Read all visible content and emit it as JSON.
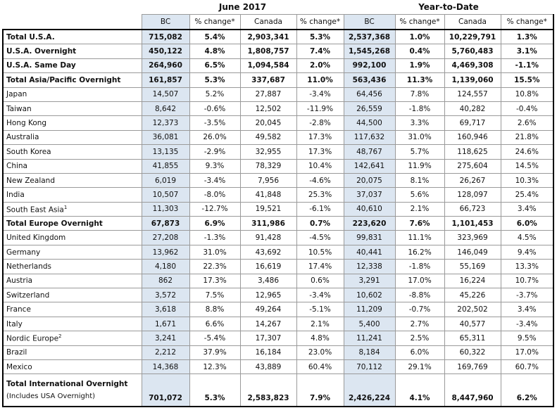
{
  "groups": [
    "June 2017",
    "Year-to-Date"
  ],
  "columns": [
    "BC",
    "% change*",
    "Canada",
    "% change*",
    "BC",
    "% change*",
    "Canada",
    "% change*"
  ],
  "rows": [
    {
      "label": "Total U.S.A.",
      "bold": true,
      "values": [
        "715,082",
        "5.4%",
        "2,903,341",
        "5.3%",
        "2,537,368",
        "1.0%",
        "10,229,791",
        "1.3%"
      ]
    },
    {
      "label": "U.S.A. Overnight",
      "bold": true,
      "values": [
        "450,122",
        "4.8%",
        "1,808,757",
        "7.4%",
        "1,545,268",
        "0.4%",
        "5,760,483",
        "3.1%"
      ]
    },
    {
      "label": "U.S.A. Same Day",
      "bold": true,
      "values": [
        "264,960",
        "6.5%",
        "1,094,584",
        "2.0%",
        "992,100",
        "1.9%",
        "4,469,308",
        "-1.1%"
      ]
    },
    {
      "label": "Total Asia/Pacific Overnight",
      "bold": true,
      "values": [
        "161,857",
        "5.3%",
        "337,687",
        "11.0%",
        "563,436",
        "11.3%",
        "1,139,060",
        "15.5%"
      ]
    },
    {
      "label": "Japan",
      "values": [
        "14,507",
        "5.2%",
        "27,887",
        "-3.4%",
        "64,456",
        "7.8%",
        "124,557",
        "10.8%"
      ]
    },
    {
      "label": "Taiwan",
      "values": [
        "8,642",
        "-0.6%",
        "12,502",
        "-11.9%",
        "26,559",
        "-1.8%",
        "40,282",
        "-0.4%"
      ]
    },
    {
      "label": "Hong Kong",
      "values": [
        "12,373",
        "-3.5%",
        "20,045",
        "-2.8%",
        "44,500",
        "3.3%",
        "69,717",
        "2.6%"
      ]
    },
    {
      "label": "Australia",
      "values": [
        "36,081",
        "26.0%",
        "49,582",
        "17.3%",
        "117,632",
        "31.0%",
        "160,946",
        "21.8%"
      ]
    },
    {
      "label": "South Korea",
      "values": [
        "13,135",
        "-2.9%",
        "32,955",
        "17.3%",
        "48,767",
        "5.7%",
        "118,625",
        "24.6%"
      ]
    },
    {
      "label": "China",
      "values": [
        "41,855",
        "9.3%",
        "78,329",
        "10.4%",
        "142,641",
        "11.9%",
        "275,604",
        "14.5%"
      ]
    },
    {
      "label": "New Zealand",
      "values": [
        "6,019",
        "-3.4%",
        "7,956",
        "-4.6%",
        "20,075",
        "8.1%",
        "26,267",
        "10.3%"
      ]
    },
    {
      "label": "India",
      "values": [
        "10,507",
        "-8.0%",
        "41,848",
        "25.3%",
        "37,037",
        "5.6%",
        "128,097",
        "25.4%"
      ]
    },
    {
      "label": "South East Asia",
      "sup": "1",
      "values": [
        "11,303",
        "-12.7%",
        "19,521",
        "-6.1%",
        "40,610",
        "2.1%",
        "66,723",
        "3.4%"
      ]
    },
    {
      "label": "Total Europe Overnight",
      "bold": true,
      "values": [
        "67,873",
        "6.9%",
        "311,986",
        "0.7%",
        "223,620",
        "7.6%",
        "1,101,453",
        "6.0%"
      ]
    },
    {
      "label": "United Kingdom",
      "values": [
        "27,208",
        "-1.3%",
        "91,428",
        "-4.5%",
        "99,831",
        "11.1%",
        "323,969",
        "4.5%"
      ]
    },
    {
      "label": "Germany",
      "values": [
        "13,962",
        "31.0%",
        "43,692",
        "10.5%",
        "40,441",
        "16.2%",
        "146,049",
        "9.4%"
      ]
    },
    {
      "label": "Netherlands",
      "values": [
        "4,180",
        "22.3%",
        "16,619",
        "17.4%",
        "12,338",
        "-1.8%",
        "55,169",
        "13.3%"
      ]
    },
    {
      "label": "Austria",
      "values": [
        "862",
        "17.3%",
        "3,486",
        "0.6%",
        "3,291",
        "17.0%",
        "16,224",
        "10.7%"
      ]
    },
    {
      "label": "Switzerland",
      "values": [
        "3,572",
        "7.5%",
        "12,965",
        "-3.4%",
        "10,602",
        "-8.8%",
        "45,226",
        "-3.7%"
      ]
    },
    {
      "label": "France",
      "values": [
        "3,618",
        "8.8%",
        "49,264",
        "-5.1%",
        "11,209",
        "-0.7%",
        "202,502",
        "3.4%"
      ]
    },
    {
      "label": "Italy",
      "values": [
        "1,671",
        "6.6%",
        "14,267",
        "2.1%",
        "5,400",
        "2.7%",
        "40,577",
        "-3.4%"
      ]
    },
    {
      "label": "Nordic Europe",
      "sup": "2",
      "values": [
        "3,241",
        "-5.4%",
        "17,307",
        "4.8%",
        "11,241",
        "2.5%",
        "65,311",
        "9.5%"
      ]
    },
    {
      "label": "Brazil",
      "values": [
        "2,212",
        "37.9%",
        "16,184",
        "23.0%",
        "8,184",
        "6.0%",
        "60,322",
        "17.0%"
      ]
    },
    {
      "label": "Mexico",
      "values": [
        "14,368",
        "12.3%",
        "43,889",
        "60.4%",
        "70,112",
        "29.1%",
        "169,769",
        "60.7%"
      ]
    },
    {
      "label": "Total International Overnight",
      "note": "(Includes USA Overnight)",
      "bold": true,
      "values": [
        "701,072",
        "5.3%",
        "2,583,823",
        "7.9%",
        "2,426,224",
        "4.1%",
        "8,447,960",
        "6.2%"
      ]
    }
  ]
}
